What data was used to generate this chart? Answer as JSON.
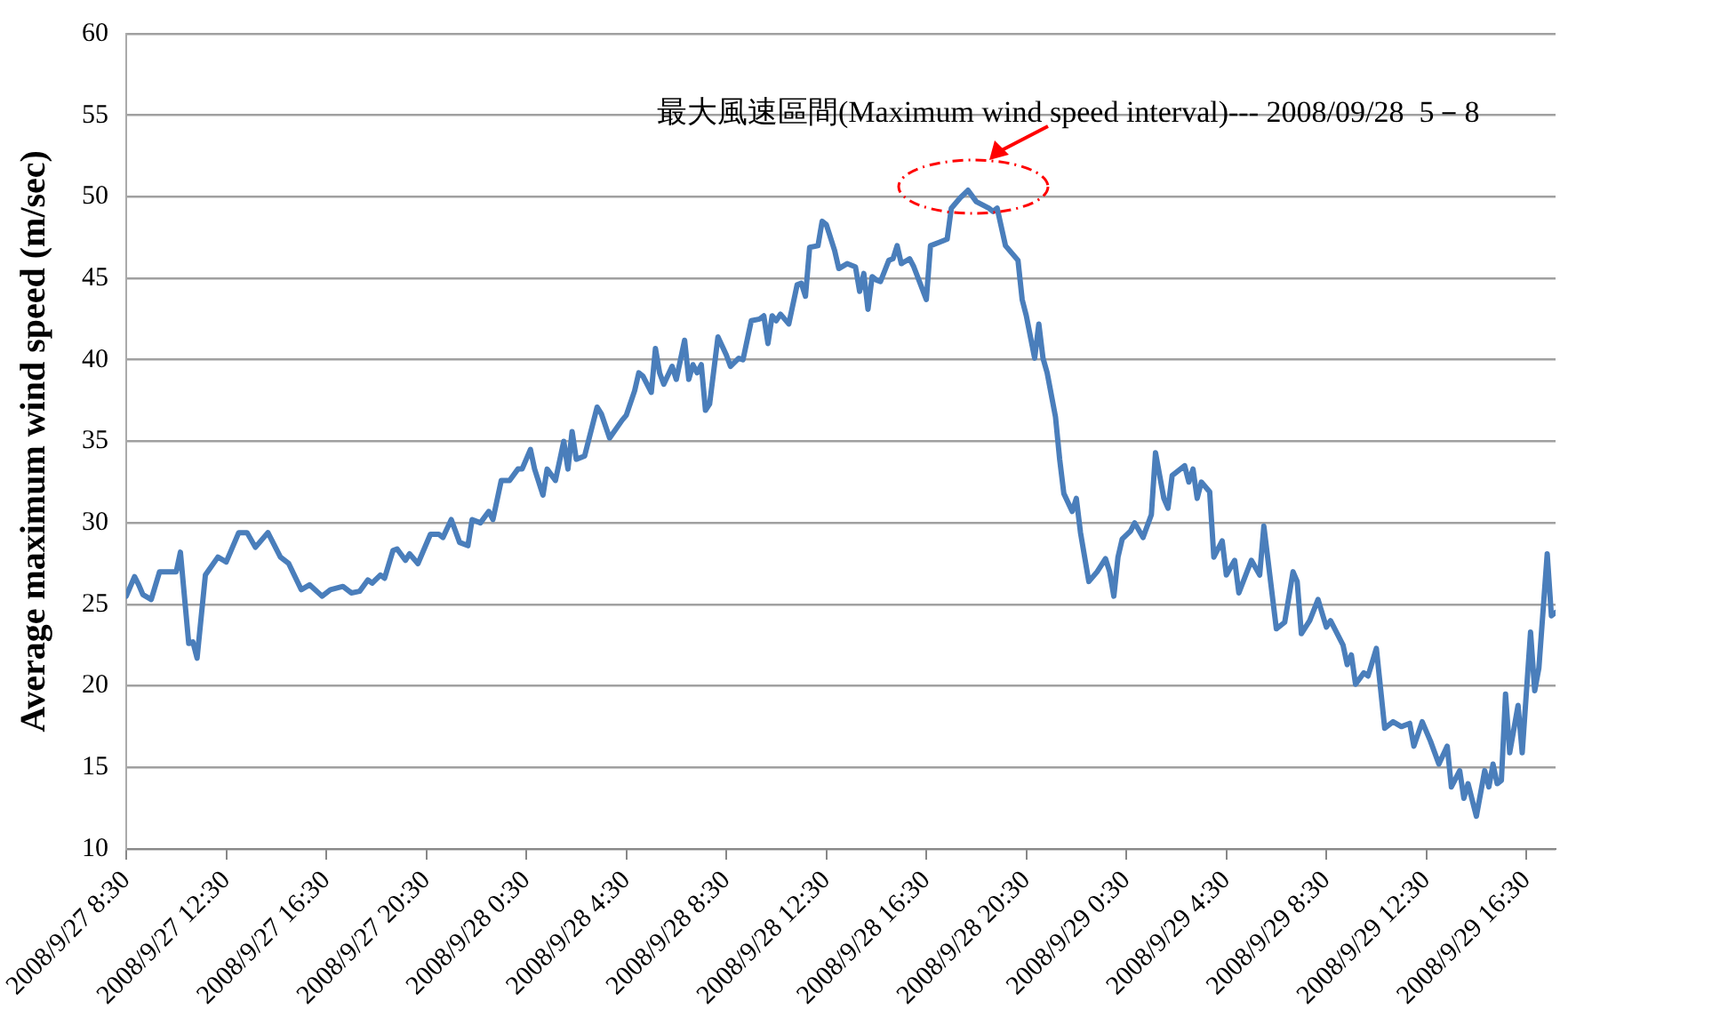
{
  "chart_data": {
    "type": "line",
    "ylabel": "Average maximum wind speed (m/sec)",
    "xlim": [
      "2008-09-27T08:30",
      "2008-09-29T17:40"
    ],
    "xticks": [
      {
        "value": "2008-09-27T08:30",
        "label": "2008/9/27 8:30"
      },
      {
        "value": "2008-09-27T12:30",
        "label": "2008/9/27 12:30"
      },
      {
        "value": "2008-09-27T16:30",
        "label": "2008/9/27 16:30"
      },
      {
        "value": "2008-09-27T20:30",
        "label": "2008/9/27 20:30"
      },
      {
        "value": "2008-09-28T00:30",
        "label": "2008/9/28 0:30"
      },
      {
        "value": "2008-09-28T04:30",
        "label": "2008/9/28 4:30"
      },
      {
        "value": "2008-09-28T08:30",
        "label": "2008/9/28 8:30"
      },
      {
        "value": "2008-09-28T12:30",
        "label": "2008/9/28 12:30"
      },
      {
        "value": "2008-09-28T16:30",
        "label": "2008/9/28 16:30"
      },
      {
        "value": "2008-09-28T20:30",
        "label": "2008/9/28 20:30"
      },
      {
        "value": "2008-09-29T00:30",
        "label": "2008/9/29 0:30"
      },
      {
        "value": "2008-09-29T04:30",
        "label": "2008/9/29 4:30"
      },
      {
        "value": "2008-09-29T08:30",
        "label": "2008/9/29 8:30"
      },
      {
        "value": "2008-09-29T12:30",
        "label": "2008/9/29 12:30"
      },
      {
        "value": "2008-09-29T16:30",
        "label": "2008/9/29 16:30"
      }
    ],
    "ylim": [
      10,
      60
    ],
    "yticks": [
      10,
      15,
      20,
      25,
      30,
      35,
      40,
      45,
      50,
      55,
      60
    ],
    "grid": "y",
    "legend": false,
    "marker": "none",
    "line_style": "solid",
    "annotations": [
      {
        "text": "最大風速區間(Maximum wind speed interval)--- 2008/09/28  5－8",
        "x": "2008-09-28T18:10",
        "y": 50.4
      }
    ],
    "series": [
      {
        "color": "#4a7ebb",
        "x": [
          "2008-09-27T08:30",
          "2008-09-27T08:50",
          "2008-09-27T09:00",
          "2008-09-27T09:10",
          "2008-09-27T09:30",
          "2008-09-27T09:50",
          "2008-09-27T10:30",
          "2008-09-27T10:40",
          "2008-09-27T11:00",
          "2008-09-27T11:10",
          "2008-09-27T11:20",
          "2008-09-27T11:40",
          "2008-09-27T12:10",
          "2008-09-27T12:30",
          "2008-09-27T13:00",
          "2008-09-27T13:20",
          "2008-09-27T13:40",
          "2008-09-27T14:10",
          "2008-09-27T14:40",
          "2008-09-27T15:00",
          "2008-09-27T15:30",
          "2008-09-27T15:50",
          "2008-09-27T16:20",
          "2008-09-27T16:40",
          "2008-09-27T17:10",
          "2008-09-27T17:30",
          "2008-09-27T17:50",
          "2008-09-27T18:10",
          "2008-09-27T18:20",
          "2008-09-27T18:40",
          "2008-09-27T18:50",
          "2008-09-27T19:10",
          "2008-09-27T19:20",
          "2008-09-27T19:40",
          "2008-09-27T19:50",
          "2008-09-27T20:10",
          "2008-09-27T20:40",
          "2008-09-27T21:00",
          "2008-09-27T21:10",
          "2008-09-27T21:30",
          "2008-09-27T21:50",
          "2008-09-27T22:10",
          "2008-09-27T22:20",
          "2008-09-27T22:40",
          "2008-09-27T23:00",
          "2008-09-27T23:10",
          "2008-09-27T23:30",
          "2008-09-27T23:50",
          "2008-09-28T00:10",
          "2008-09-28T00:20",
          "2008-09-28T00:40",
          "2008-09-28T00:50",
          "2008-09-28T01:10",
          "2008-09-28T01:20",
          "2008-09-28T01:40",
          "2008-09-28T02:00",
          "2008-09-28T02:10",
          "2008-09-28T02:20",
          "2008-09-28T02:30",
          "2008-09-28T02:50",
          "2008-09-28T03:20",
          "2008-09-28T03:30",
          "2008-09-28T03:50",
          "2008-09-28T04:20",
          "2008-09-28T04:30",
          "2008-09-28T04:50",
          "2008-09-28T05:00",
          "2008-09-28T05:10",
          "2008-09-28T05:30",
          "2008-09-28T05:40",
          "2008-09-28T05:50",
          "2008-09-28T06:00",
          "2008-09-28T06:20",
          "2008-09-28T06:30",
          "2008-09-28T06:50",
          "2008-09-28T07:00",
          "2008-09-28T07:10",
          "2008-09-28T07:20",
          "2008-09-28T07:30",
          "2008-09-28T07:40",
          "2008-09-28T07:50",
          "2008-09-28T08:10",
          "2008-09-28T08:30",
          "2008-09-28T08:40",
          "2008-09-28T09:00",
          "2008-09-28T09:10",
          "2008-09-28T09:30",
          "2008-09-28T09:50",
          "2008-09-28T10:00",
          "2008-09-28T10:10",
          "2008-09-28T10:20",
          "2008-09-28T10:30",
          "2008-09-28T10:40",
          "2008-09-28T11:00",
          "2008-09-28T11:20",
          "2008-09-28T11:30",
          "2008-09-28T11:40",
          "2008-09-28T11:50",
          "2008-09-28T12:10",
          "2008-09-28T12:20",
          "2008-09-28T12:30",
          "2008-09-28T12:50",
          "2008-09-28T13:00",
          "2008-09-28T13:20",
          "2008-09-28T13:40",
          "2008-09-28T13:50",
          "2008-09-28T14:00",
          "2008-09-28T14:10",
          "2008-09-28T14:20",
          "2008-09-28T14:30",
          "2008-09-28T14:40",
          "2008-09-28T15:00",
          "2008-09-28T15:10",
          "2008-09-28T15:20",
          "2008-09-28T15:30",
          "2008-09-28T15:50",
          "2008-09-28T16:00",
          "2008-09-28T16:30",
          "2008-09-28T16:40",
          "2008-09-28T17:00",
          "2008-09-28T17:20",
          "2008-09-28T17:30",
          "2008-09-28T17:50",
          "2008-09-28T18:10",
          "2008-09-28T18:30",
          "2008-09-28T19:00",
          "2008-09-28T19:10",
          "2008-09-28T19:20",
          "2008-09-28T19:40",
          "2008-09-28T20:10",
          "2008-09-28T20:20",
          "2008-09-28T20:30",
          "2008-09-28T20:40",
          "2008-09-28T20:50",
          "2008-09-28T21:00",
          "2008-09-28T21:10",
          "2008-09-28T21:20",
          "2008-09-28T21:40",
          "2008-09-28T21:50",
          "2008-09-28T22:00",
          "2008-09-28T22:20",
          "2008-09-28T22:30",
          "2008-09-28T22:40",
          "2008-09-28T23:00",
          "2008-09-28T23:20",
          "2008-09-28T23:40",
          "2008-09-28T23:50",
          "2008-09-29T00:00",
          "2008-09-29T00:10",
          "2008-09-29T00:20",
          "2008-09-29T00:40",
          "2008-09-29T00:50",
          "2008-09-29T01:10",
          "2008-09-29T01:30",
          "2008-09-29T01:40",
          "2008-09-29T02:00",
          "2008-09-29T02:10",
          "2008-09-29T02:20",
          "2008-09-29T02:50",
          "2008-09-29T03:00",
          "2008-09-29T03:10",
          "2008-09-29T03:20",
          "2008-09-29T03:30",
          "2008-09-29T03:50",
          "2008-09-29T04:00",
          "2008-09-29T04:20",
          "2008-09-29T04:30",
          "2008-09-29T04:50",
          "2008-09-29T05:00",
          "2008-09-29T05:30",
          "2008-09-29T05:50",
          "2008-09-29T06:00",
          "2008-09-29T06:30",
          "2008-09-29T06:50",
          "2008-09-29T07:10",
          "2008-09-29T07:20",
          "2008-09-29T07:30",
          "2008-09-29T07:50",
          "2008-09-29T08:10",
          "2008-09-29T08:30",
          "2008-09-29T08:40",
          "2008-09-29T09:10",
          "2008-09-29T09:20",
          "2008-09-29T09:30",
          "2008-09-29T09:40",
          "2008-09-29T10:00",
          "2008-09-29T10:10",
          "2008-09-29T10:30",
          "2008-09-29T10:50",
          "2008-09-29T11:10",
          "2008-09-29T11:30",
          "2008-09-29T11:50",
          "2008-09-29T12:00",
          "2008-09-29T12:20",
          "2008-09-29T12:40",
          "2008-09-29T13:00",
          "2008-09-29T13:20",
          "2008-09-29T13:30",
          "2008-09-29T13:50",
          "2008-09-29T14:00",
          "2008-09-29T14:10",
          "2008-09-29T14:30",
          "2008-09-29T14:50",
          "2008-09-29T15:00",
          "2008-09-29T15:10",
          "2008-09-29T15:20",
          "2008-09-29T15:30",
          "2008-09-29T15:40",
          "2008-09-29T15:50",
          "2008-09-29T16:10",
          "2008-09-29T16:20",
          "2008-09-29T16:40",
          "2008-09-29T16:50",
          "2008-09-29T17:00",
          "2008-09-29T17:20",
          "2008-09-29T17:30",
          "2008-09-29T17:40"
        ],
        "values": [
          25.5,
          26.7,
          26.2,
          25.6,
          25.3,
          27.0,
          27.0,
          28.2,
          22.6,
          22.7,
          21.7,
          26.8,
          27.9,
          27.6,
          29.4,
          29.4,
          28.5,
          29.4,
          27.9,
          27.5,
          25.9,
          26.2,
          25.5,
          25.9,
          26.1,
          25.7,
          25.8,
          26.5,
          26.3,
          26.8,
          26.6,
          28.3,
          28.4,
          27.7,
          28.1,
          27.5,
          29.3,
          29.3,
          29.1,
          30.2,
          28.8,
          28.6,
          30.2,
          30.0,
          30.7,
          30.2,
          32.6,
          32.6,
          33.3,
          33.3,
          34.5,
          33.3,
          31.7,
          33.3,
          32.6,
          35.0,
          33.3,
          35.6,
          33.9,
          34.1,
          37.1,
          36.7,
          35.2,
          36.3,
          36.6,
          38.1,
          39.2,
          39.0,
          38.0,
          40.7,
          39.2,
          38.5,
          39.6,
          38.8,
          41.2,
          38.8,
          39.7,
          39.2,
          39.7,
          36.9,
          37.3,
          41.4,
          40.3,
          39.6,
          40.1,
          40.0,
          42.4,
          42.5,
          42.7,
          41.0,
          42.7,
          42.4,
          42.8,
          42.2,
          44.6,
          44.7,
          43.9,
          46.9,
          47.0,
          48.5,
          48.3,
          46.7,
          45.6,
          45.9,
          45.7,
          44.2,
          45.3,
          43.1,
          45.1,
          44.9,
          44.8,
          46.1,
          46.2,
          47.0,
          45.9,
          46.2,
          45.7,
          43.7,
          47.0,
          47.2,
          47.4,
          49.3,
          49.9,
          50.4,
          49.7,
          49.3,
          49.1,
          49.3,
          47.0,
          46.1,
          43.7,
          42.7,
          41.4,
          40.1,
          42.2,
          40.1,
          39.2,
          36.5,
          33.9,
          31.8,
          30.7,
          31.5,
          29.4,
          26.4,
          27.0,
          27.8,
          27.0,
          25.5,
          27.9,
          29.0,
          29.5,
          30.0,
          29.1,
          30.5,
          34.3,
          31.5,
          30.9,
          32.9,
          33.5,
          32.5,
          33.3,
          31.5,
          32.5,
          31.9,
          27.9,
          28.9,
          26.8,
          27.7,
          25.7,
          27.7,
          26.8,
          29.8,
          23.5,
          23.9,
          27.0,
          26.4,
          23.2,
          24.0,
          25.3,
          23.6,
          24.0,
          22.5,
          21.3,
          21.9,
          20.1,
          20.8,
          20.6,
          22.3,
          17.4,
          17.8,
          17.5,
          17.7,
          16.3,
          17.8,
          16.6,
          15.2,
          16.3,
          13.8,
          14.8,
          13.1,
          14.0,
          12.0,
          14.8,
          13.8,
          15.2,
          14.0,
          14.2,
          19.5,
          15.9,
          18.8,
          15.9,
          23.3,
          19.7,
          21.1,
          28.1,
          24.3,
          24.5
        ]
      }
    ]
  }
}
